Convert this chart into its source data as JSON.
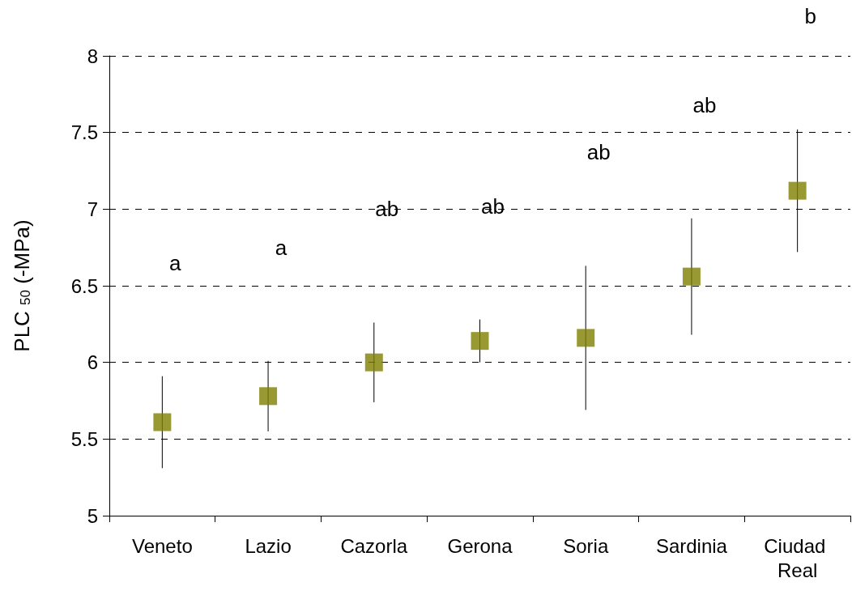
{
  "chart_data": {
    "type": "scatter",
    "ylabel": "PLC $_{50}$ (-MPa)",
    "categories": [
      "Veneto",
      "Lazio",
      "Cazorla",
      "Gerona",
      "Soria",
      "Sardinia",
      "Ciudad Real"
    ],
    "values": [
      5.61,
      5.78,
      6.0,
      6.14,
      6.16,
      6.56,
      7.12
    ],
    "errors": [
      0.3,
      0.23,
      0.26,
      0.14,
      0.47,
      0.38,
      0.4
    ],
    "color": "#808000",
    "marker": "square",
    "grid": "y",
    "ylim": [
      5,
      8
    ],
    "yticks": [
      5,
      5.5,
      6,
      6.5,
      7,
      7.5,
      8
    ],
    "annotations": [
      "a",
      "a",
      "ab",
      "ab",
      "ab",
      "ab",
      "b"
    ]
  }
}
